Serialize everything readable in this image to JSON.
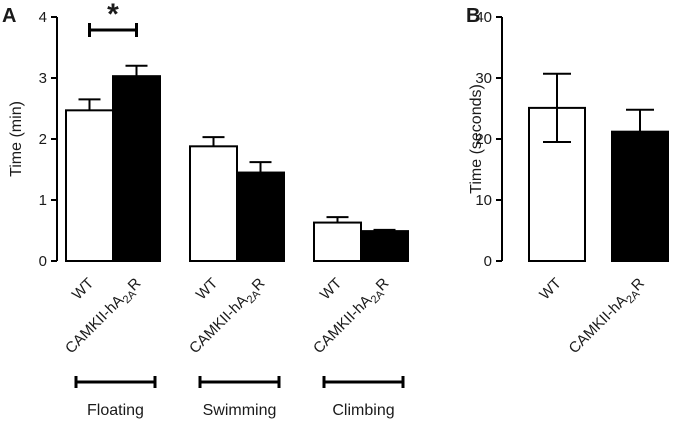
{
  "chart_data": [
    {
      "panel_label": "A",
      "type": "bar",
      "ylabel": "Time (min)",
      "ylim": [
        0,
        4
      ],
      "yticks": [
        "0",
        "1",
        "2",
        "3",
        "4"
      ],
      "categories": [
        "WT",
        "CAMKII-hA2AR"
      ],
      "category_parts": {
        "CAMKII-hA2AR": [
          "CAMKII-hA",
          "2",
          "A",
          "R"
        ]
      },
      "groups": [
        {
          "label": "Floating",
          "values": [
            2.47,
            3.03
          ],
          "errors": [
            0.18,
            0.17
          ]
        },
        {
          "label": "Swimming",
          "values": [
            1.88,
            1.45
          ],
          "errors": [
            0.15,
            0.17
          ]
        },
        {
          "label": "Climbing",
          "values": [
            0.63,
            0.49
          ],
          "errors": [
            0.09,
            0.02
          ]
        }
      ],
      "fills": [
        "#ffffff",
        "#000000"
      ],
      "significance": {
        "group": "Floating",
        "label": "*"
      }
    },
    {
      "panel_label": "B",
      "type": "bar",
      "ylabel": "Time (seconds)",
      "ylim": [
        0,
        40
      ],
      "yticks": [
        "0",
        "10",
        "20",
        "30",
        "40"
      ],
      "categories": [
        "WT",
        "CAMKII-hA2AR"
      ],
      "category_parts": {
        "CAMKII-hA2AR": [
          "CAMKII-hA",
          "2",
          "A",
          "R"
        ]
      },
      "values": [
        25.1,
        21.2
      ],
      "errors": [
        5.6,
        3.6
      ],
      "fills": [
        "#ffffff",
        "#000000"
      ]
    }
  ]
}
